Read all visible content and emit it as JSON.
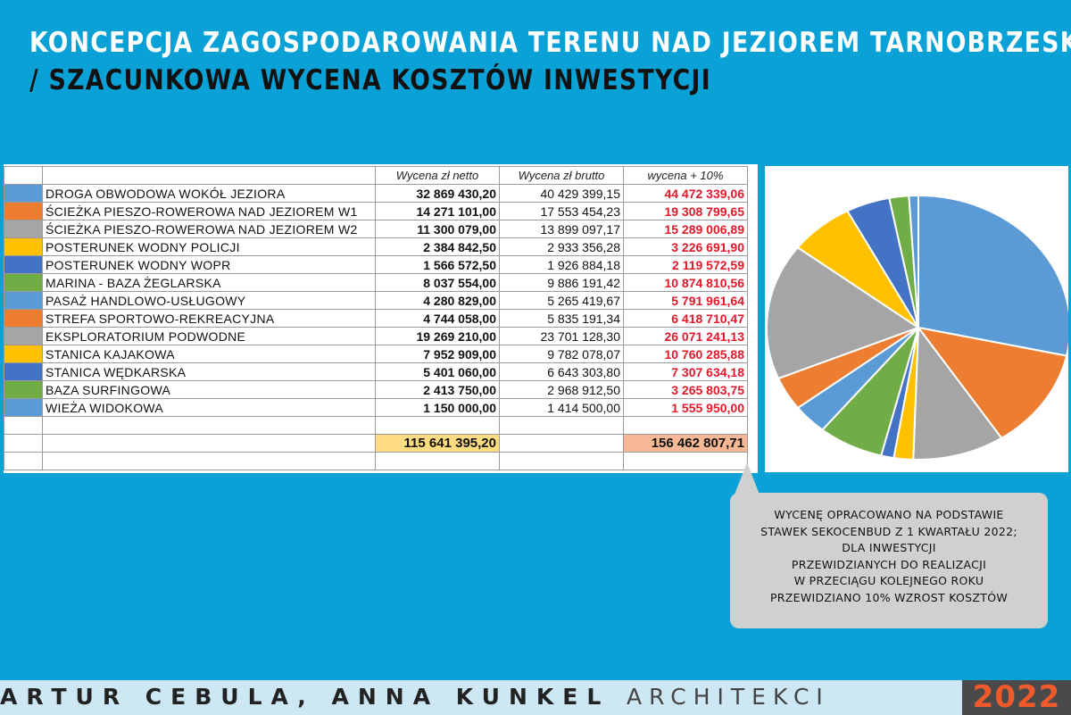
{
  "title_line1": "KONCEPCJA ZAGOSPODAROWANIA TERENU NAD JEZIOREM TARNOBRZESKIM",
  "title_line2": "/ SZACUNKOWA WYCENA KOSZTÓW INWESTYCJI",
  "table": {
    "headers": [
      "Wycena zł netto",
      "Wycena zł brutto",
      "wycena + 10%"
    ],
    "total_netto": "115 641 395,20",
    "total_plus10": "156 462 807,71"
  },
  "chart_data": {
    "type": "pie",
    "categories": [
      "DROGA OBWODOWA WOKÓŁ JEZIORA",
      "ŚCIEŻKA PIESZO-ROWEROWA NAD JEZIOREM W1",
      "ŚCIEŻKA PIESZO-ROWEROWA NAD JEZIOREM W2",
      "POSTERUNEK WODNY POLICJI",
      "POSTERUNEK WODNY WOPR",
      "MARINA - BAZA ŻEGLARSKA",
      "PASAŻ HANDLOWO-USŁUGOWY",
      "STREFA SPORTOWO-REKREACYJNA",
      "EKSPLORATORIUM PODWODNE",
      "STANICA KAJAKOWA",
      "STANICA WĘDKARSKA",
      "BAZA SURFINGOWA",
      "WIEŻA WIDOKOWA"
    ],
    "colors": [
      "#5b9bd5",
      "#ed7d31",
      "#a5a5a5",
      "#ffc000",
      "#4472c4",
      "#70ad47",
      "#5b9bd5",
      "#ed7d31",
      "#a5a5a5",
      "#ffc000",
      "#4472c4",
      "#70ad47",
      "#5b9bd5"
    ],
    "values": [
      32869430.2,
      14271101.0,
      11300079.0,
      2384842.5,
      1566572.5,
      8037554.0,
      4280829.0,
      4744058.0,
      19269210.0,
      7952909.0,
      5401060.0,
      2413750.0,
      1150000.0
    ],
    "netto_labels": [
      "32 869 430,20",
      "14 271 101,00",
      "11 300 079,00",
      "2 384 842,50",
      "1 566 572,50",
      "8 037 554,00",
      "4 280 829,00",
      "4 744 058,00",
      "19 269 210,00",
      "7 952 909,00",
      "5 401 060,00",
      "2 413 750,00",
      "1 150 000,00"
    ],
    "brutto_labels": [
      "40 429 399,15",
      "17 553 454,23",
      "13 899 097,17",
      "2 933 356,28",
      "1 926 884,18",
      "9 886 191,42",
      "5 265 419,67",
      "5 835 191,34",
      "23 701 128,30",
      "9 782 078,07",
      "6 643 303,80",
      "2 968 912,50",
      "1 414 500,00"
    ],
    "plus10_labels": [
      "44 472 339,06",
      "19 308 799,65",
      "15 289 006,89",
      "3 226 691,90",
      "2 119 572,59",
      "10 874 810,56",
      "5 791 961,64",
      "6 418 710,47",
      "26 071 241,13",
      "10 760 285,88",
      "7 307 634,18",
      "3 265 803,75",
      "1 555 950,00"
    ]
  },
  "note_lines": [
    "WYCENĘ OPRACOWANO NA PODSTAWIE",
    "STAWEK SEKOCENBUD Z 1 KWARTAŁU 2022;",
    "DLA INWESTYCJI",
    "PRZEWIDZIANYCH DO REALIZACJI",
    "W PRZECIĄGU KOLEJNEGO ROKU",
    "PRZEWIDZIANO 10% WZROST KOSZTÓW"
  ],
  "footer": {
    "names": "ARTUR CEBULA, ANNA KUNKEL",
    "suffix": "ARCHITEKCI",
    "year": "2022"
  }
}
